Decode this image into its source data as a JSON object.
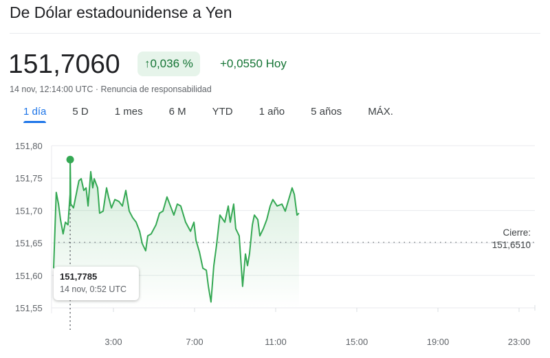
{
  "title": "De Dólar estadounidense a Yen",
  "price": "151,7060",
  "change_percent": "0,036 %",
  "change_arrow_icon": "arrow-up-icon",
  "change_abs": "+0,0550 Hoy",
  "timestamp": "14 nov, 12:14:00 UTC",
  "separator": " · ",
  "disclaimer": "Renuncia de responsabilidad",
  "tabs": [
    "1 día",
    "5 D",
    "1 mes",
    "6 M",
    "YTD",
    "1 año",
    "5 años",
    "MÁX."
  ],
  "active_tab": "1 día",
  "colors": {
    "up": "#137333",
    "line": "#34a853",
    "accent": "#1a73e8"
  },
  "tooltip": {
    "value": "151,7785",
    "date": "14 nov, 0:52 UTC"
  },
  "close": {
    "label": "Cierre:",
    "value": "151,6510"
  },
  "chart_data": {
    "type": "line",
    "ylim": [
      151.55,
      151.8
    ],
    "xlim_hours": [
      0,
      24
    ],
    "y_ticks": [
      "151,80",
      "151,75",
      "151,70",
      "151,65",
      "151,60",
      "151,55"
    ],
    "x_ticks": [
      "3:00",
      "7:00",
      "11:00",
      "15:00",
      "19:00",
      "23:00"
    ],
    "previous_close": 151.651,
    "hover_point": {
      "hour": 0.867,
      "value": 151.7785
    },
    "points": [
      [
        0.05,
        151.611
      ],
      [
        0.18,
        151.728
      ],
      [
        0.29,
        151.71
      ],
      [
        0.39,
        151.686
      ],
      [
        0.52,
        151.664
      ],
      [
        0.63,
        151.682
      ],
      [
        0.76,
        151.678
      ],
      [
        0.86,
        151.725
      ],
      [
        0.867,
        151.7785
      ],
      [
        0.9,
        151.71
      ],
      [
        1.03,
        151.704
      ],
      [
        1.3,
        151.746
      ],
      [
        1.41,
        151.749
      ],
      [
        1.54,
        151.731
      ],
      [
        1.65,
        151.735
      ],
      [
        1.75,
        151.707
      ],
      [
        1.88,
        151.76
      ],
      [
        1.98,
        151.735
      ],
      [
        2.05,
        151.749
      ],
      [
        2.22,
        151.735
      ],
      [
        2.32,
        151.696
      ],
      [
        2.49,
        151.699
      ],
      [
        2.66,
        151.735
      ],
      [
        2.76,
        151.721
      ],
      [
        2.9,
        151.704
      ],
      [
        3.07,
        151.717
      ],
      [
        3.27,
        151.714
      ],
      [
        3.44,
        151.707
      ],
      [
        3.61,
        151.731
      ],
      [
        3.78,
        151.699
      ],
      [
        3.95,
        151.689
      ],
      [
        4.12,
        151.682
      ],
      [
        4.29,
        151.668
      ],
      [
        4.42,
        151.649
      ],
      [
        4.59,
        151.638
      ],
      [
        4.69,
        151.661
      ],
      [
        4.86,
        151.664
      ],
      [
        5.1,
        151.678
      ],
      [
        5.27,
        151.696
      ],
      [
        5.44,
        151.699
      ],
      [
        5.64,
        151.721
      ],
      [
        5.81,
        151.707
      ],
      [
        5.98,
        151.693
      ],
      [
        6.15,
        151.71
      ],
      [
        6.32,
        151.707
      ],
      [
        6.56,
        151.682
      ],
      [
        6.8,
        151.668
      ],
      [
        6.97,
        151.682
      ],
      [
        7.07,
        151.654
      ],
      [
        7.24,
        151.636
      ],
      [
        7.41,
        151.611
      ],
      [
        7.58,
        151.608
      ],
      [
        7.68,
        151.583
      ],
      [
        7.81,
        151.559
      ],
      [
        7.95,
        151.615
      ],
      [
        8.08,
        151.646
      ],
      [
        8.25,
        151.693
      ],
      [
        8.49,
        151.682
      ],
      [
        8.66,
        151.707
      ],
      [
        8.76,
        151.682
      ],
      [
        8.93,
        151.71
      ],
      [
        9.03,
        151.672
      ],
      [
        9.2,
        151.661
      ],
      [
        9.37,
        151.583
      ],
      [
        9.51,
        151.633
      ],
      [
        9.61,
        151.615
      ],
      [
        9.71,
        151.633
      ],
      [
        9.85,
        151.678
      ],
      [
        9.95,
        151.693
      ],
      [
        10.12,
        151.686
      ],
      [
        10.22,
        151.661
      ],
      [
        10.39,
        151.672
      ],
      [
        10.56,
        151.686
      ],
      [
        10.73,
        151.707
      ],
      [
        10.86,
        151.717
      ],
      [
        11.07,
        151.707
      ],
      [
        11.31,
        151.71
      ],
      [
        11.47,
        151.699
      ],
      [
        11.64,
        151.717
      ],
      [
        11.81,
        151.735
      ],
      [
        11.92,
        151.725
      ],
      [
        12.05,
        151.693
      ],
      [
        12.15,
        151.696
      ]
    ]
  }
}
